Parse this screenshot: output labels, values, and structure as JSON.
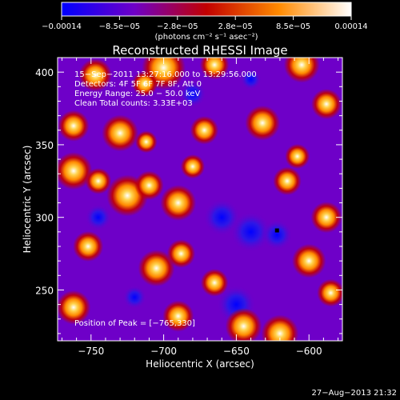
{
  "chart_data": {
    "type": "heatmap",
    "title": "Reconstructed RHESSI Image",
    "xlabel": "Heliocentric X (arcsec)",
    "ylabel": "Heliocentric Y (arcsec)",
    "xlim": [
      -773,
      -577
    ],
    "ylim": [
      215,
      410
    ],
    "x_ticks": [
      -750,
      -700,
      -650,
      -600
    ],
    "x_tick_labels": [
      "−750",
      "−700",
      "−650",
      "−600"
    ],
    "y_ticks": [
      250,
      300,
      350,
      400
    ],
    "y_tick_labels": [
      "250",
      "300",
      "350",
      "400"
    ],
    "colorbar": {
      "range": [
        -0.00014,
        0.00014
      ],
      "tick_labels": [
        "−0.00014",
        "−8.5e−05",
        "−2.8e−05",
        "2.8e−05",
        "8.5e−05",
        "0.00014"
      ],
      "units": "(photons cm⁻² s⁻¹ asec⁻²)",
      "colors": [
        "#0000ff",
        "#6e00c8",
        "#c20000",
        "#ff8a00",
        "#ffffff"
      ]
    },
    "annotations": [
      "15−Sep−2011 13:27:16.000 to 13:29:56.000",
      "Detectors: 4F 5F 6F 7F 8F, Att 0",
      "Energy Range: 25.0 − 50.0 keV",
      "Clean     Total counts: 3.33E+03"
    ],
    "peak_label": "Position of Peak = [−765,330]",
    "marker": {
      "x": -622,
      "y": 291
    },
    "blobs": [
      {
        "x": -747,
        "y": 398,
        "v": 0.00011,
        "r": 11
      },
      {
        "x": -700,
        "y": 403,
        "v": 0.00013,
        "r": 14
      },
      {
        "x": -713,
        "y": 392,
        "v": 9e-05,
        "r": 9
      },
      {
        "x": -665,
        "y": 405,
        "v": 0.0001,
        "r": 10
      },
      {
        "x": -605,
        "y": 405,
        "v": 0.00011,
        "r": 12
      },
      {
        "x": -588,
        "y": 378,
        "v": 8e-05,
        "r": 11
      },
      {
        "x": -762,
        "y": 363,
        "v": 9e-05,
        "r": 11
      },
      {
        "x": -730,
        "y": 358,
        "v": 0.00012,
        "r": 12
      },
      {
        "x": -712,
        "y": 352,
        "v": 8e-05,
        "r": 8
      },
      {
        "x": -672,
        "y": 360,
        "v": 9e-05,
        "r": 10
      },
      {
        "x": -632,
        "y": 365,
        "v": 0.0001,
        "r": 12
      },
      {
        "x": -608,
        "y": 342,
        "v": 8e-05,
        "r": 9
      },
      {
        "x": -762,
        "y": 332,
        "v": 0.00013,
        "r": 12
      },
      {
        "x": -745,
        "y": 325,
        "v": 0.0001,
        "r": 9
      },
      {
        "x": -725,
        "y": 315,
        "v": 0.00014,
        "r": 13
      },
      {
        "x": -710,
        "y": 322,
        "v": 0.0001,
        "r": 10
      },
      {
        "x": -690,
        "y": 310,
        "v": 0.00011,
        "r": 12
      },
      {
        "x": -680,
        "y": 335,
        "v": 7e-05,
        "r": 9
      },
      {
        "x": -615,
        "y": 325,
        "v": 9e-05,
        "r": 10
      },
      {
        "x": -588,
        "y": 300,
        "v": 9e-05,
        "r": 11
      },
      {
        "x": -752,
        "y": 280,
        "v": 8e-05,
        "r": 11
      },
      {
        "x": -705,
        "y": 265,
        "v": 0.00012,
        "r": 12
      },
      {
        "x": -688,
        "y": 275,
        "v": 9e-05,
        "r": 10
      },
      {
        "x": -665,
        "y": 255,
        "v": 8e-05,
        "r": 10
      },
      {
        "x": -600,
        "y": 270,
        "v": 9e-05,
        "r": 12
      },
      {
        "x": -585,
        "y": 248,
        "v": 8e-05,
        "r": 10
      },
      {
        "x": -762,
        "y": 238,
        "v": 9e-05,
        "r": 12
      },
      {
        "x": -690,
        "y": 232,
        "v": 9e-05,
        "r": 11
      },
      {
        "x": -645,
        "y": 225,
        "v": 0.00012,
        "r": 12
      },
      {
        "x": -620,
        "y": 220,
        "v": 0.00013,
        "r": 12
      },
      {
        "x": -660,
        "y": 300,
        "v": -9e-05,
        "r": 13
      },
      {
        "x": -640,
        "y": 290,
        "v": -0.0001,
        "r": 14
      },
      {
        "x": -622,
        "y": 288,
        "v": -0.00012,
        "r": 10
      },
      {
        "x": -650,
        "y": 240,
        "v": -0.00011,
        "r": 13
      },
      {
        "x": -680,
        "y": 385,
        "v": -7e-05,
        "r": 10
      },
      {
        "x": -745,
        "y": 300,
        "v": -6e-05,
        "r": 10
      },
      {
        "x": -640,
        "y": 395,
        "v": -6e-05,
        "r": 8
      },
      {
        "x": -720,
        "y": 245,
        "v": -6e-05,
        "r": 9
      }
    ]
  },
  "footer": {
    "timestamp": "27−Aug−2013 21:32"
  }
}
